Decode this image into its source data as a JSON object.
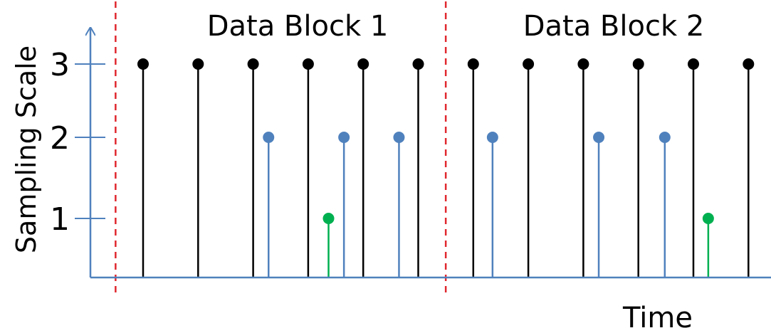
{
  "chart_data": {
    "type": "scatter",
    "xlabel": "Time",
    "ylabel": "Sampling Scale",
    "yticks": [
      1,
      2,
      3
    ],
    "ylim": [
      0,
      3
    ],
    "block_labels": [
      "Data Block 1",
      "Data Block 2"
    ],
    "colors": {
      "scale_3": "#000000",
      "scale_2": "#4f81bd",
      "scale_1": "#00b050",
      "axis": "#4f81bd",
      "block_boundary": "#e0282e"
    },
    "series": [
      {
        "name": "",
        "scale": 3,
        "color": "#000000",
        "x": [
          1,
          2,
          3,
          4,
          5,
          6,
          7,
          8,
          9,
          10,
          11,
          12
        ]
      },
      {
        "name": "",
        "scale": 2,
        "color": "#4f81bd",
        "x": [
          3.28,
          4.65,
          5.65,
          7.35,
          9.28,
          10.48
        ]
      },
      {
        "name": "",
        "scale": 1,
        "color": "#00b050",
        "x": [
          4.37,
          11.27
        ]
      }
    ],
    "block_boundaries": [
      0.5,
      6.5,
      12.5
    ],
    "xlim": [
      0,
      13
    ]
  }
}
